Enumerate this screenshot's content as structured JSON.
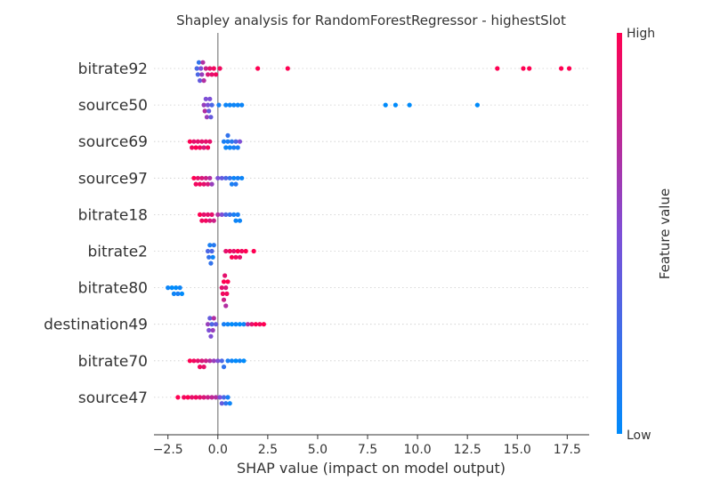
{
  "chart_data": {
    "type": "scatter",
    "subtype": "shap-beeswarm",
    "title": "Shapley analysis for RandomForestRegressor - highestSlot",
    "xlabel": "SHAP value (impact on model output)",
    "ylabel": "",
    "xlim": [
      -3.2,
      18.6
    ],
    "xticks": [
      -2.5,
      0.0,
      2.5,
      5.0,
      7.5,
      10.0,
      12.5,
      15.0,
      17.5
    ],
    "xtick_labels": [
      "−2.5",
      "0.0",
      "2.5",
      "5.0",
      "7.5",
      "10.0",
      "12.5",
      "15.0",
      "17.5"
    ],
    "grid": false,
    "colorbar": {
      "label": "Feature value",
      "high_label": "High",
      "low_label": "Low",
      "high_color": "#ff0052",
      "low_color": "#008bfb"
    },
    "features": [
      {
        "name": "bitrate92",
        "points": [
          {
            "x": -1.0,
            "v": 0.3
          },
          {
            "x": -0.95,
            "v": 0.2
          },
          {
            "x": -0.9,
            "v": 0.4
          },
          {
            "x": -1.05,
            "v": 0.3
          },
          {
            "x": -0.85,
            "v": 0.5
          },
          {
            "x": -0.8,
            "v": 0.6
          },
          {
            "x": -0.75,
            "v": 0.7
          },
          {
            "x": -0.7,
            "v": 0.7
          },
          {
            "x": -0.6,
            "v": 0.8
          },
          {
            "x": -0.5,
            "v": 0.85
          },
          {
            "x": -0.4,
            "v": 0.9
          },
          {
            "x": -0.3,
            "v": 0.9
          },
          {
            "x": -0.2,
            "v": 0.95
          },
          {
            "x": -0.1,
            "v": 0.95
          },
          {
            "x": 0.1,
            "v": 0.95
          },
          {
            "x": 2.0,
            "v": 1.0
          },
          {
            "x": 3.5,
            "v": 1.0
          },
          {
            "x": 14.0,
            "v": 1.0
          },
          {
            "x": 15.3,
            "v": 1.0
          },
          {
            "x": 15.6,
            "v": 1.0
          },
          {
            "x": 17.2,
            "v": 1.0
          },
          {
            "x": 17.6,
            "v": 1.0
          }
        ]
      },
      {
        "name": "source50",
        "points": [
          {
            "x": -0.7,
            "v": 0.6
          },
          {
            "x": -0.6,
            "v": 0.5
          },
          {
            "x": -0.55,
            "v": 0.6
          },
          {
            "x": -0.5,
            "v": 0.5
          },
          {
            "x": -0.45,
            "v": 0.4
          },
          {
            "x": -0.4,
            "v": 0.5
          },
          {
            "x": -0.65,
            "v": 0.7
          },
          {
            "x": -0.35,
            "v": 0.4
          },
          {
            "x": -0.3,
            "v": 0.3
          },
          {
            "x": 0.05,
            "v": 0.1
          },
          {
            "x": 0.4,
            "v": 0.05
          },
          {
            "x": 0.6,
            "v": 0.05
          },
          {
            "x": 0.8,
            "v": 0.05
          },
          {
            "x": 1.0,
            "v": 0.05
          },
          {
            "x": 1.2,
            "v": 0.05
          },
          {
            "x": 8.4,
            "v": 0.0
          },
          {
            "x": 8.9,
            "v": 0.0
          },
          {
            "x": 9.6,
            "v": 0.0
          },
          {
            "x": 13.0,
            "v": 0.0
          }
        ]
      },
      {
        "name": "source69",
        "points": [
          {
            "x": -1.4,
            "v": 1.0
          },
          {
            "x": -1.3,
            "v": 0.95
          },
          {
            "x": -1.2,
            "v": 0.9
          },
          {
            "x": -1.1,
            "v": 1.0
          },
          {
            "x": -1.0,
            "v": 0.9
          },
          {
            "x": -0.9,
            "v": 0.95
          },
          {
            "x": -0.8,
            "v": 0.9
          },
          {
            "x": -0.7,
            "v": 0.85
          },
          {
            "x": -0.6,
            "v": 0.9
          },
          {
            "x": -0.5,
            "v": 0.95
          },
          {
            "x": -0.4,
            "v": 0.9
          },
          {
            "x": 0.3,
            "v": 0.1
          },
          {
            "x": 0.4,
            "v": 0.05
          },
          {
            "x": 0.5,
            "v": 0.1
          },
          {
            "x": 0.6,
            "v": 0.05
          },
          {
            "x": 0.7,
            "v": 0.15
          },
          {
            "x": 0.8,
            "v": 0.1
          },
          {
            "x": 0.5,
            "v": 0.2
          },
          {
            "x": 0.9,
            "v": 0.3
          },
          {
            "x": 1.0,
            "v": 0.1
          },
          {
            "x": 1.1,
            "v": 0.5
          }
        ]
      },
      {
        "name": "source97",
        "points": [
          {
            "x": -1.2,
            "v": 1.0
          },
          {
            "x": -1.1,
            "v": 0.95
          },
          {
            "x": -1.0,
            "v": 0.9
          },
          {
            "x": -0.9,
            "v": 0.95
          },
          {
            "x": -0.8,
            "v": 0.85
          },
          {
            "x": -0.7,
            "v": 0.9
          },
          {
            "x": -0.6,
            "v": 0.8
          },
          {
            "x": -0.5,
            "v": 0.85
          },
          {
            "x": -0.4,
            "v": 0.7
          },
          {
            "x": -0.3,
            "v": 0.6
          },
          {
            "x": 0.0,
            "v": 0.5
          },
          {
            "x": 0.2,
            "v": 0.4
          },
          {
            "x": 0.4,
            "v": 0.3
          },
          {
            "x": 0.6,
            "v": 0.2
          },
          {
            "x": 0.7,
            "v": 0.1
          },
          {
            "x": 0.8,
            "v": 0.05
          },
          {
            "x": 1.0,
            "v": 0.1
          },
          {
            "x": 1.2,
            "v": 0.05
          },
          {
            "x": 0.9,
            "v": 0.15
          }
        ]
      },
      {
        "name": "bitrate18",
        "points": [
          {
            "x": -0.9,
            "v": 1.0
          },
          {
            "x": -0.8,
            "v": 0.95
          },
          {
            "x": -0.7,
            "v": 0.9
          },
          {
            "x": -0.6,
            "v": 0.95
          },
          {
            "x": -0.5,
            "v": 0.9
          },
          {
            "x": -0.4,
            "v": 0.85
          },
          {
            "x": -0.3,
            "v": 0.9
          },
          {
            "x": -0.2,
            "v": 0.8
          },
          {
            "x": 0.0,
            "v": 0.7
          },
          {
            "x": 0.2,
            "v": 0.5
          },
          {
            "x": 0.4,
            "v": 0.3
          },
          {
            "x": 0.6,
            "v": 0.2
          },
          {
            "x": 0.8,
            "v": 0.1
          },
          {
            "x": 0.9,
            "v": 0.05
          },
          {
            "x": 1.0,
            "v": 0.1
          },
          {
            "x": 1.1,
            "v": 0.05
          }
        ]
      },
      {
        "name": "bitrate2",
        "points": [
          {
            "x": -0.5,
            "v": 0.3
          },
          {
            "x": -0.45,
            "v": 0.2
          },
          {
            "x": -0.4,
            "v": 0.1
          },
          {
            "x": -0.35,
            "v": 0.2
          },
          {
            "x": -0.3,
            "v": 0.3
          },
          {
            "x": -0.25,
            "v": 0.05
          },
          {
            "x": -0.2,
            "v": 0.15
          },
          {
            "x": 0.4,
            "v": 0.9
          },
          {
            "x": 0.6,
            "v": 0.95
          },
          {
            "x": 0.7,
            "v": 1.0
          },
          {
            "x": 0.8,
            "v": 0.9
          },
          {
            "x": 0.9,
            "v": 0.95
          },
          {
            "x": 1.0,
            "v": 1.0
          },
          {
            "x": 1.1,
            "v": 0.9
          },
          {
            "x": 1.2,
            "v": 0.95
          },
          {
            "x": 1.4,
            "v": 1.0
          },
          {
            "x": 1.8,
            "v": 1.0
          }
        ]
      },
      {
        "name": "bitrate80",
        "points": [
          {
            "x": -2.5,
            "v": 0.05
          },
          {
            "x": -2.3,
            "v": 0.0
          },
          {
            "x": -2.2,
            "v": 0.05
          },
          {
            "x": -2.1,
            "v": 0.0
          },
          {
            "x": -2.0,
            "v": 0.1
          },
          {
            "x": -1.9,
            "v": 0.05
          },
          {
            "x": -1.8,
            "v": 0.0
          },
          {
            "x": 0.2,
            "v": 0.9
          },
          {
            "x": 0.25,
            "v": 0.95
          },
          {
            "x": 0.3,
            "v": 1.0
          },
          {
            "x": 0.35,
            "v": 0.9
          },
          {
            "x": 0.4,
            "v": 0.85
          },
          {
            "x": 0.45,
            "v": 0.95
          },
          {
            "x": 0.5,
            "v": 1.0
          },
          {
            "x": 0.3,
            "v": 0.8
          },
          {
            "x": 0.4,
            "v": 0.7
          }
        ]
      },
      {
        "name": "destination49",
        "points": [
          {
            "x": -0.5,
            "v": 0.6
          },
          {
            "x": -0.45,
            "v": 0.5
          },
          {
            "x": -0.4,
            "v": 0.4
          },
          {
            "x": -0.35,
            "v": 0.5
          },
          {
            "x": -0.3,
            "v": 0.3
          },
          {
            "x": -0.25,
            "v": 0.6
          },
          {
            "x": -0.2,
            "v": 0.7
          },
          {
            "x": -0.1,
            "v": 0.4
          },
          {
            "x": 0.3,
            "v": 0.1
          },
          {
            "x": 0.5,
            "v": 0.05
          },
          {
            "x": 0.7,
            "v": 0.0
          },
          {
            "x": 0.9,
            "v": 0.05
          },
          {
            "x": 1.1,
            "v": 0.0
          },
          {
            "x": 1.3,
            "v": 0.05
          },
          {
            "x": 1.5,
            "v": 0.7
          },
          {
            "x": 1.7,
            "v": 0.9
          },
          {
            "x": 1.9,
            "v": 1.0
          },
          {
            "x": 2.1,
            "v": 0.95
          },
          {
            "x": 2.3,
            "v": 1.0
          }
        ]
      },
      {
        "name": "bitrate70",
        "points": [
          {
            "x": -1.4,
            "v": 1.0
          },
          {
            "x": -1.2,
            "v": 0.95
          },
          {
            "x": -1.0,
            "v": 0.9
          },
          {
            "x": -0.9,
            "v": 0.95
          },
          {
            "x": -0.8,
            "v": 0.85
          },
          {
            "x": -0.7,
            "v": 0.9
          },
          {
            "x": -0.6,
            "v": 0.8
          },
          {
            "x": -0.4,
            "v": 0.7
          },
          {
            "x": -0.2,
            "v": 0.6
          },
          {
            "x": 0.0,
            "v": 0.5
          },
          {
            "x": 0.2,
            "v": 0.3
          },
          {
            "x": 0.3,
            "v": 0.2
          },
          {
            "x": 0.5,
            "v": 0.1
          },
          {
            "x": 0.7,
            "v": 0.05
          },
          {
            "x": 0.9,
            "v": 0.0
          },
          {
            "x": 1.1,
            "v": 0.05
          },
          {
            "x": 1.3,
            "v": 0.0
          }
        ]
      },
      {
        "name": "source47",
        "points": [
          {
            "x": -2.0,
            "v": 1.0
          },
          {
            "x": -1.7,
            "v": 0.95
          },
          {
            "x": -1.5,
            "v": 1.0
          },
          {
            "x": -1.3,
            "v": 0.9
          },
          {
            "x": -1.1,
            "v": 0.95
          },
          {
            "x": -0.9,
            "v": 0.9
          },
          {
            "x": -0.7,
            "v": 0.85
          },
          {
            "x": -0.5,
            "v": 0.8
          },
          {
            "x": -0.3,
            "v": 0.75
          },
          {
            "x": -0.1,
            "v": 0.7
          },
          {
            "x": 0.1,
            "v": 0.5
          },
          {
            "x": 0.2,
            "v": 0.4
          },
          {
            "x": 0.3,
            "v": 0.3
          },
          {
            "x": 0.4,
            "v": 0.2
          },
          {
            "x": 0.5,
            "v": 0.1
          },
          {
            "x": 0.6,
            "v": 0.05
          }
        ]
      }
    ]
  }
}
